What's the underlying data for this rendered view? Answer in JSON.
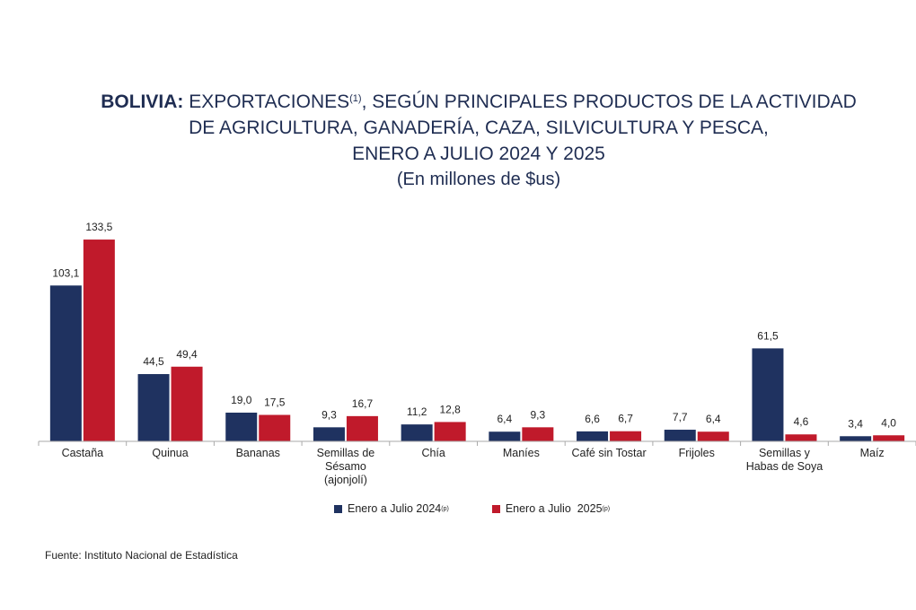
{
  "title": {
    "country": "BOLIVIA:",
    "line1": "EXPORTACIONES",
    "line1_sup": "(1)",
    "line1_rest": ", SEGÚN PRINCIPALES PRODUCTOS DE LA ACTIVIDAD",
    "line2": "DE AGRICULTURA, GANADERÍA, CAZA, SILVICULTURA Y PESCA,",
    "line3": "ENERO A JULIO 2024 Y 2025",
    "subtitle": "(En millones de $us)"
  },
  "chart_data": {
    "type": "bar",
    "categories": [
      [
        "Castaña"
      ],
      [
        "Quinua"
      ],
      [
        "Bananas"
      ],
      [
        "Semillas de",
        "Sésamo",
        "(ajonjolí)"
      ],
      [
        "Chía"
      ],
      [
        "Maníes"
      ],
      [
        "Café sin Tostar"
      ],
      [
        "Frijoles"
      ],
      [
        "Semillas y",
        "Habas de Soya"
      ],
      [
        "Maíz"
      ]
    ],
    "series": [
      {
        "name": "Enero a Julio 2024",
        "name_sup": "(p)",
        "color": "#1f3260",
        "values": [
          103.1,
          44.5,
          19.0,
          9.3,
          11.2,
          6.4,
          6.6,
          7.7,
          61.5,
          3.4
        ],
        "labels": [
          "103,1",
          "44,5",
          "19,0",
          "9,3",
          "11,2",
          "6,4",
          "6,6",
          "7,7",
          "61,5",
          "3,4"
        ]
      },
      {
        "name": "Enero a Julio  2025",
        "name_sup": "(p)",
        "color": "#c01a2b",
        "values": [
          133.5,
          49.4,
          17.5,
          16.7,
          12.8,
          9.3,
          6.7,
          6.4,
          4.6,
          4.0
        ],
        "labels": [
          "133,5",
          "49,4",
          "17,5",
          "16,7",
          "12,8",
          "9,3",
          "6,7",
          "6,4",
          "4,6",
          "4,0"
        ]
      }
    ],
    "legend_position": "bottom",
    "grid": false
  },
  "source": "Fuente: Instituto Nacional de Estadística"
}
